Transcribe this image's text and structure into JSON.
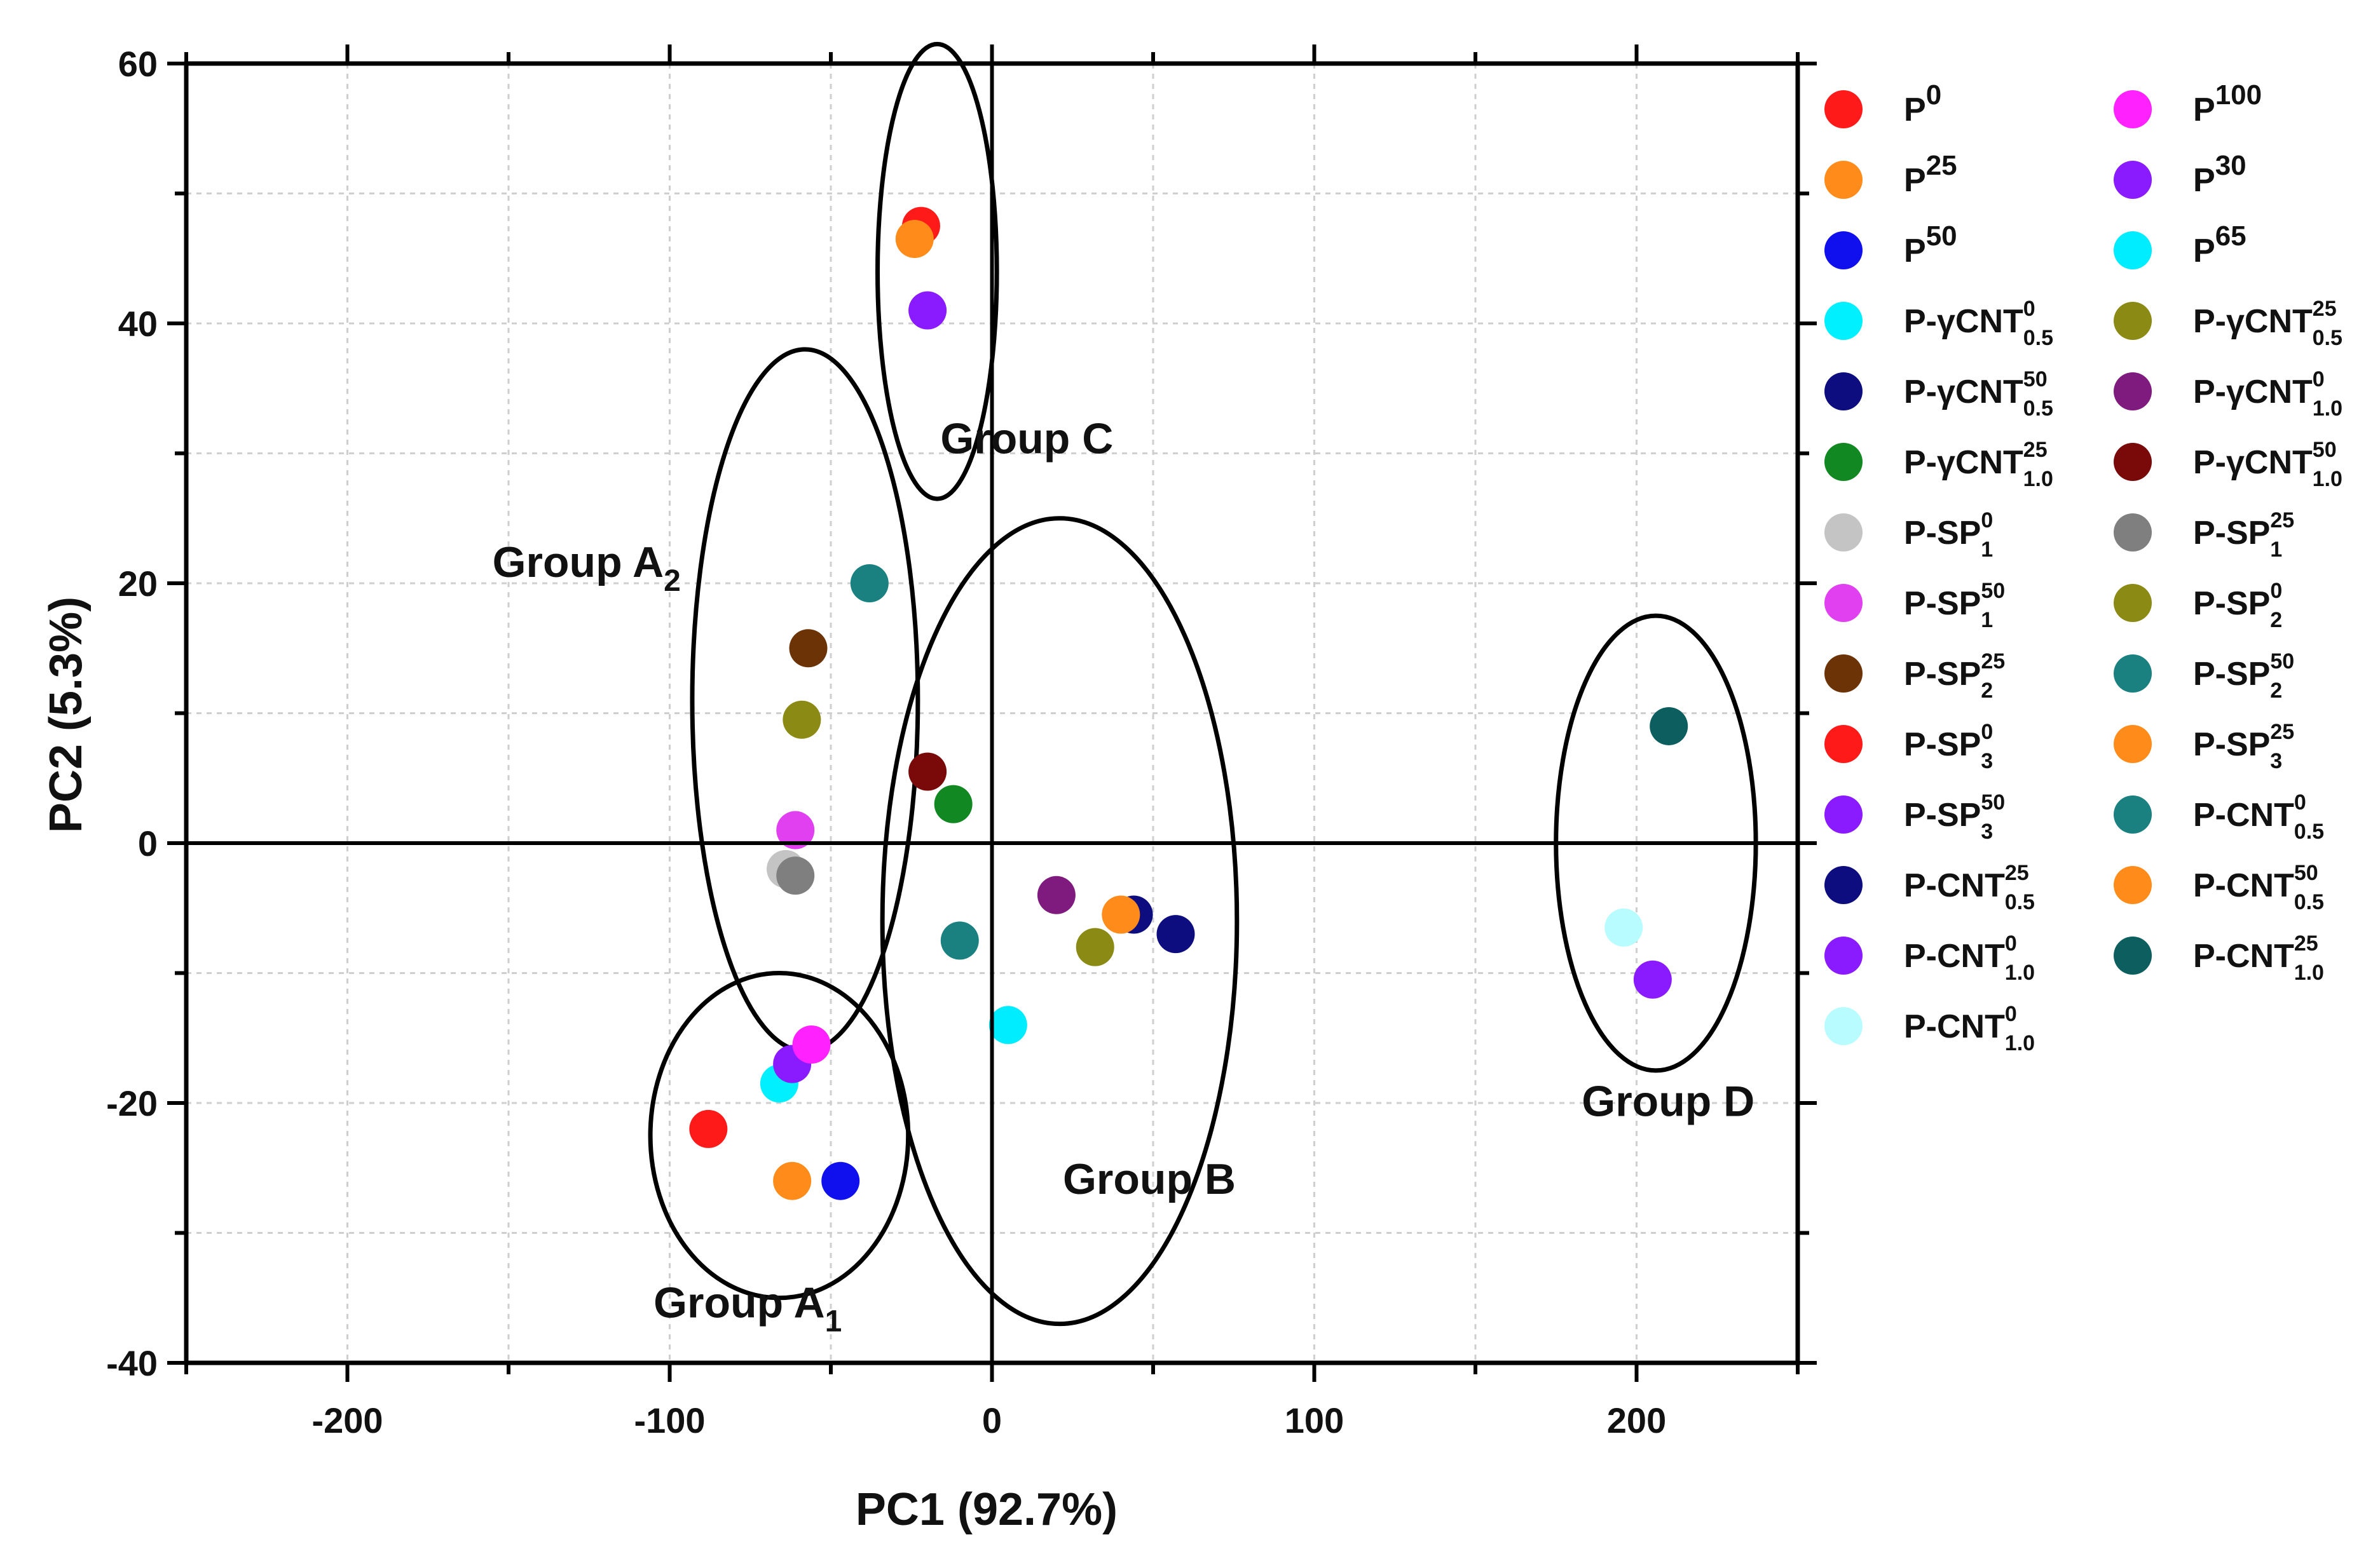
{
  "chart_data": {
    "type": "scatter",
    "xlabel": "PC1 (92.7%)",
    "ylabel": "PC2 (5.3%)",
    "xlim": [
      -250,
      250
    ],
    "ylim": [
      -40,
      60
    ],
    "xticks": [
      "-200",
      "-100",
      "0",
      "100",
      "200"
    ],
    "yticks": [
      "-40",
      "-20",
      "0",
      "20",
      "40",
      "60"
    ],
    "grid": true,
    "legend_position": "right",
    "series": [
      {
        "name": "P^0",
        "color": "#ff1a1a",
        "x": -88,
        "y": -22
      },
      {
        "name": "P^25",
        "color": "#ff8c1a",
        "x": -62,
        "y": -26
      },
      {
        "name": "P^50",
        "color": "#1010ee",
        "x": -47,
        "y": -26
      },
      {
        "name": "P-γCNT^0_0.5",
        "color": "#00f0ff",
        "x": -66,
        "y": -18.5
      },
      {
        "name": "P-γCNT^50_0.5",
        "color": "#0d0d80",
        "x": 44,
        "y": -5.5
      },
      {
        "name": "P-γCNT^25_1.0",
        "color": "#118822",
        "x": -12,
        "y": 3
      },
      {
        "name": "P-SP^0_1",
        "color": "#c4c4c4",
        "x": -64,
        "y": -2
      },
      {
        "name": "P-SP^50_1",
        "color": "#e040f0",
        "x": -61,
        "y": 1
      },
      {
        "name": "P-SP^25_2",
        "color": "#6b3306",
        "x": -57,
        "y": 15
      },
      {
        "name": "P-SP^0_3",
        "color": "#ff1a1a",
        "x": -22,
        "y": 47.5
      },
      {
        "name": "P-SP^50_3",
        "color": "#8a1aff",
        "x": -20,
        "y": 41
      },
      {
        "name": "P-CNT^25_0.5",
        "color": "#0d0d80",
        "x": 57,
        "y": -7
      },
      {
        "name": "P-CNT^0_1.0",
        "color": "#8a1aff",
        "x": -62,
        "y": -17
      },
      {
        "name": "P-CNT^0_1.0",
        "color": "#b8fcff",
        "x": 196,
        "y": -6.5
      },
      {
        "name": "P^100",
        "color": "#ff22ff",
        "x": -56,
        "y": -15.5
      },
      {
        "name": "P^30",
        "color": "#8a1aff",
        "x": 205,
        "y": -10.5
      },
      {
        "name": "P^65",
        "color": "#00ecff",
        "x": 5,
        "y": -14
      },
      {
        "name": "P-γCNT^25_0.5",
        "color": "#8a8a14",
        "x": 32,
        "y": -8
      },
      {
        "name": "P-γCNT^0_1.0",
        "color": "#7f1a7f",
        "x": 20,
        "y": -4
      },
      {
        "name": "P-γCNT^50_1.0",
        "color": "#7a0a0a",
        "x": -20,
        "y": 5.5
      },
      {
        "name": "P-SP^25_1",
        "color": "#7f7f7f",
        "x": -61,
        "y": -2.5
      },
      {
        "name": "P-SP^0_2",
        "color": "#8a8a14",
        "x": -59,
        "y": 9.5
      },
      {
        "name": "P-SP^50_2",
        "color": "#1a8080",
        "x": -38,
        "y": 20
      },
      {
        "name": "P-SP^25_3",
        "color": "#ff8c1a",
        "x": -24,
        "y": 46.5
      },
      {
        "name": "P-CNT^0_0.5",
        "color": "#1a8080",
        "x": -10,
        "y": -7.5
      },
      {
        "name": "P-CNT^50_0.5",
        "color": "#ff8c1a",
        "x": 40,
        "y": -5.5
      },
      {
        "name": "P-CNT^25_1.0",
        "color": "#0d5f5f",
        "x": 210,
        "y": 9
      }
    ],
    "annotations": [
      {
        "text": "Group A",
        "sub": "1",
        "cx": -66,
        "cy": -22.5,
        "rx": 40,
        "ry": 12.5
      },
      {
        "text": "Group A",
        "sub": "2",
        "cx": -58,
        "cy": 11,
        "rx": 35,
        "ry": 27
      },
      {
        "text": "Group B",
        "cx": 21,
        "cy": -6,
        "rx": 55,
        "ry": 31
      },
      {
        "text": "Group C",
        "cx": -17,
        "cy": 44,
        "rx": 18.5,
        "ry": 17.5
      },
      {
        "text": "Group D",
        "cx": 206,
        "cy": 0,
        "rx": 31,
        "ry": 17.5
      }
    ]
  },
  "legend": {
    "columns": [
      [
        {
          "base": "P",
          "sup": "0",
          "sub": "",
          "color": "#ff1a1a"
        },
        {
          "base": "P",
          "sup": "25",
          "sub": "",
          "color": "#ff8c1a"
        },
        {
          "base": "P",
          "sup": "50",
          "sub": "",
          "color": "#1010ee"
        },
        {
          "base": "P-γCNT",
          "sup": "0",
          "sub": "0.5",
          "color": "#00f0ff"
        },
        {
          "base": "P-γCNT",
          "sup": "50",
          "sub": "0.5",
          "color": "#0d0d80"
        },
        {
          "base": "P-γCNT",
          "sup": "25",
          "sub": "1.0",
          "color": "#118822"
        },
        {
          "base": "P-SP",
          "sup": "0",
          "sub": "1",
          "color": "#c4c4c4"
        },
        {
          "base": "P-SP",
          "sup": "50",
          "sub": "1",
          "color": "#e040f0"
        },
        {
          "base": "P-SP",
          "sup": "25",
          "sub": "2",
          "color": "#6b3306"
        },
        {
          "base": "P-SP",
          "sup": "0",
          "sub": "3",
          "color": "#ff1a1a"
        },
        {
          "base": "P-SP",
          "sup": "50",
          "sub": "3",
          "color": "#8a1aff"
        },
        {
          "base": "P-CNT",
          "sup": "25",
          "sub": "0.5",
          "color": "#0d0d80"
        },
        {
          "base": "P-CNT",
          "sup": "0",
          "sub": "1.0",
          "color": "#8a1aff"
        },
        {
          "base": "P-CNT",
          "sup": "0",
          "sub": "1.0",
          "color": "#b8fcff"
        }
      ],
      [
        {
          "base": "P",
          "sup": "100",
          "sub": "",
          "color": "#ff22ff"
        },
        {
          "base": "P",
          "sup": "30",
          "sub": "",
          "color": "#8a1aff"
        },
        {
          "base": "P",
          "sup": "65",
          "sub": "",
          "color": "#00ecff"
        },
        {
          "base": "P-γCNT",
          "sup": "25",
          "sub": "0.5",
          "color": "#8a8a14"
        },
        {
          "base": "P-γCNT",
          "sup": "0",
          "sub": "1.0",
          "color": "#7f1a7f"
        },
        {
          "base": "P-γCNT",
          "sup": "50",
          "sub": "1.0",
          "color": "#7a0a0a"
        },
        {
          "base": "P-SP",
          "sup": "25",
          "sub": "1",
          "color": "#7f7f7f"
        },
        {
          "base": "P-SP",
          "sup": "0",
          "sub": "2",
          "color": "#8a8a14"
        },
        {
          "base": "P-SP",
          "sup": "50",
          "sub": "2",
          "color": "#1a8080"
        },
        {
          "base": "P-SP",
          "sup": "25",
          "sub": "3",
          "color": "#ff8c1a"
        },
        {
          "base": "P-CNT",
          "sup": "0",
          "sub": "0.5",
          "color": "#1a8080"
        },
        {
          "base": "P-CNT",
          "sup": "50",
          "sub": "0.5",
          "color": "#ff8c1a"
        },
        {
          "base": "P-CNT",
          "sup": "25",
          "sub": "1.0",
          "color": "#0d5f5f"
        }
      ]
    ]
  }
}
